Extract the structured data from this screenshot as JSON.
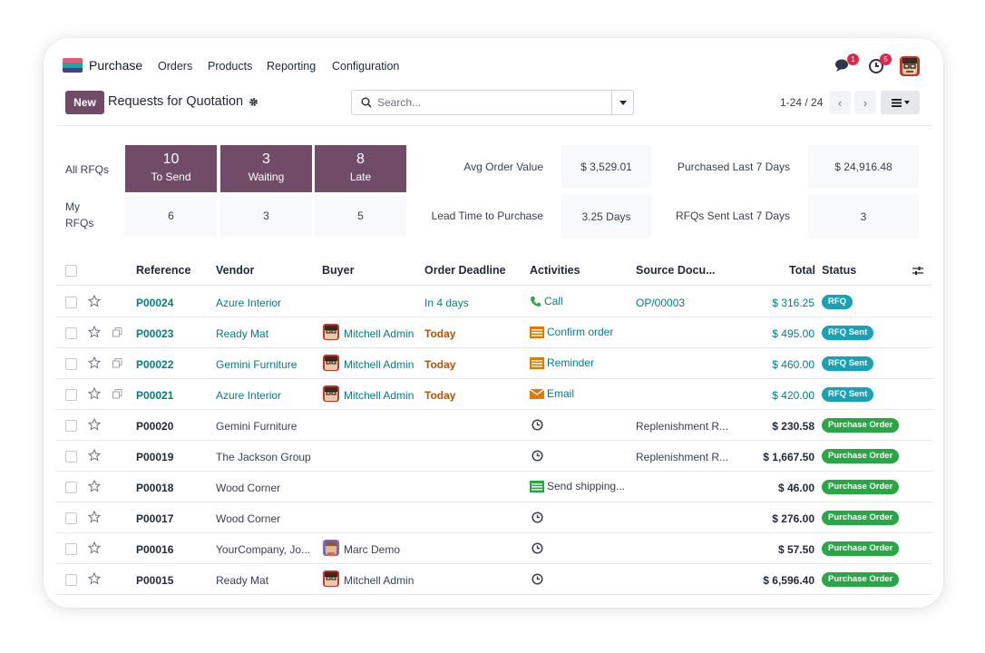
{
  "navbar": {
    "app_name": "Purchase",
    "menu": [
      "Orders",
      "Products",
      "Reporting",
      "Configuration"
    ],
    "messages_count": "1",
    "activities_count": "5"
  },
  "control": {
    "new_label": "New",
    "title": "Requests for Quotation",
    "search_placeholder": "Search...",
    "pager": "1-24 / 24"
  },
  "dashboard": {
    "all_rfqs_label": "All RFQs",
    "my_rfqs_label_1": "My",
    "my_rfqs_label_2": "RFQs",
    "tiles": [
      {
        "count": "10",
        "label": "To Send"
      },
      {
        "count": "3",
        "label": "Waiting"
      },
      {
        "count": "8",
        "label": "Late"
      }
    ],
    "my_values": [
      "6",
      "3",
      "5"
    ],
    "stats": {
      "avg_order_value_label": "Avg Order Value",
      "avg_order_value": "$ 3,529.01",
      "purchased_7d_label": "Purchased Last 7 Days",
      "purchased_7d": "$ 24,916.48",
      "lead_time_label": "Lead Time to Purchase",
      "lead_time": "3.25 Days",
      "rfqs_sent_label": "RFQs Sent Last 7 Days",
      "rfqs_sent": "3"
    }
  },
  "table": {
    "headers": {
      "reference": "Reference",
      "vendor": "Vendor",
      "buyer": "Buyer",
      "deadline": "Order Deadline",
      "activities": "Activities",
      "source": "Source Docu...",
      "total": "Total",
      "status": "Status"
    },
    "rows": [
      {
        "ref": "P00024",
        "vendor": "Azure Interior",
        "buyer": "",
        "deadline": "In 4 days",
        "activity": "Call",
        "source": "OP/00003",
        "total": "$ 316.25",
        "status": "RFQ"
      },
      {
        "ref": "P00023",
        "vendor": "Ready Mat",
        "buyer": "Mitchell Admin",
        "deadline": "Today",
        "activity": "Confirm order",
        "source": "",
        "total": "$ 495.00",
        "status": "RFQ Sent"
      },
      {
        "ref": "P00022",
        "vendor": "Gemini Furniture",
        "buyer": "Mitchell Admin",
        "deadline": "Today",
        "activity": "Reminder",
        "source": "",
        "total": "$ 460.00",
        "status": "RFQ Sent"
      },
      {
        "ref": "P00021",
        "vendor": "Azure Interior",
        "buyer": "Mitchell Admin",
        "deadline": "Today",
        "activity": "Email",
        "source": "",
        "total": "$ 420.00",
        "status": "RFQ Sent"
      },
      {
        "ref": "P00020",
        "vendor": "Gemini Furniture",
        "buyer": "",
        "deadline": "",
        "activity": "",
        "source": "Replenishment R...",
        "total": "$ 230.58",
        "status": "Purchase Order"
      },
      {
        "ref": "P00019",
        "vendor": "The Jackson Group",
        "buyer": "",
        "deadline": "",
        "activity": "",
        "source": "Replenishment R...",
        "total": "$ 1,667.50",
        "status": "Purchase Order"
      },
      {
        "ref": "P00018",
        "vendor": "Wood Corner",
        "buyer": "",
        "deadline": "",
        "activity": "Send shipping...",
        "source": "",
        "total": "$ 46.00",
        "status": "Purchase Order"
      },
      {
        "ref": "P00017",
        "vendor": "Wood Corner",
        "buyer": "",
        "deadline": "",
        "activity": "",
        "source": "",
        "total": "$ 276.00",
        "status": "Purchase Order"
      },
      {
        "ref": "P00016",
        "vendor": "YourCompany, Jo...",
        "buyer": "Marc Demo",
        "deadline": "",
        "activity": "",
        "source": "",
        "total": "$ 57.50",
        "status": "Purchase Order"
      },
      {
        "ref": "P00015",
        "vendor": "Ready Mat",
        "buyer": "Mitchell Admin",
        "deadline": "",
        "activity": "",
        "source": "",
        "total": "$ 6,596.40",
        "status": "Purchase Order"
      }
    ]
  },
  "colors": {
    "brand": "#714b67",
    "link": "#017e84",
    "rfq_badge": "#17a2b8",
    "po_badge": "#28a745",
    "today": "#b45309"
  }
}
